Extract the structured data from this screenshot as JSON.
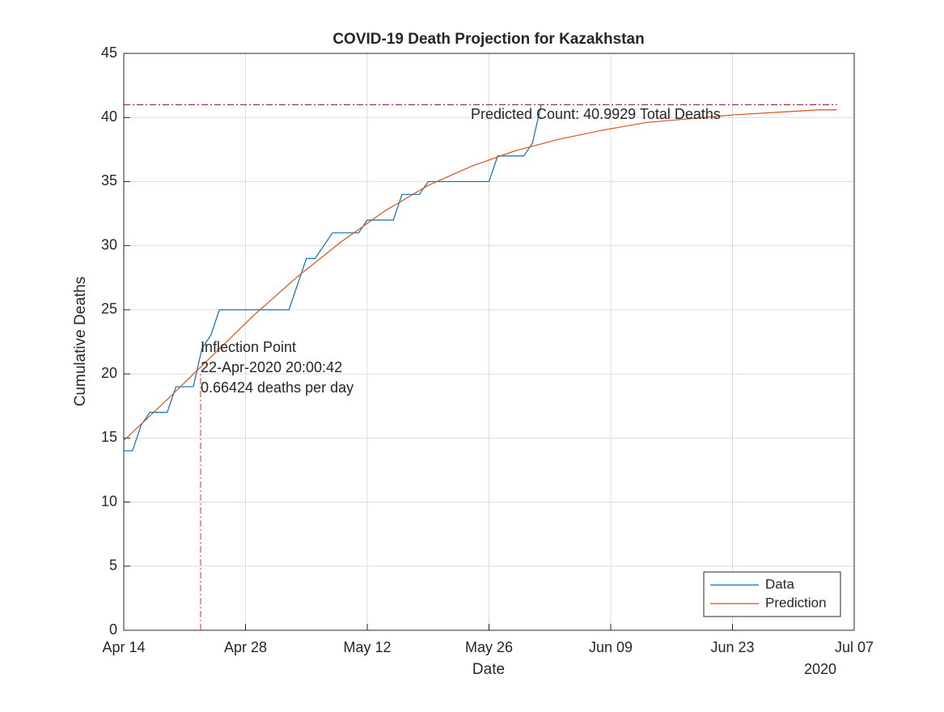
{
  "chart_data": {
    "type": "line",
    "title": "COVID-19 Death Projection for Kazakhstan",
    "xlabel": "Date",
    "xlabel_year": "2020",
    "ylabel": "Cumulative Deaths",
    "xlim": [
      "2020-04-14",
      "2020-07-07"
    ],
    "xticks": [
      {
        "value": "2020-04-14",
        "label": "Apr 14"
      },
      {
        "value": "2020-04-28",
        "label": "Apr 28"
      },
      {
        "value": "2020-05-12",
        "label": "May 12"
      },
      {
        "value": "2020-05-26",
        "label": "May 26"
      },
      {
        "value": "2020-06-09",
        "label": "Jun 09"
      },
      {
        "value": "2020-06-23",
        "label": "Jun 23"
      },
      {
        "value": "2020-07-07",
        "label": "Jul 07"
      }
    ],
    "ylim": [
      0,
      45
    ],
    "yticks": [
      0,
      5,
      10,
      15,
      20,
      25,
      30,
      35,
      40,
      45
    ],
    "grid": true,
    "legend_position": "southeast",
    "series": [
      {
        "name": "Data",
        "color": "#0072bd",
        "x": [
          "2020-04-14",
          "2020-04-15",
          "2020-04-16",
          "2020-04-17",
          "2020-04-18",
          "2020-04-19",
          "2020-04-20",
          "2020-04-21",
          "2020-04-22",
          "2020-04-23",
          "2020-04-24",
          "2020-04-25",
          "2020-04-26",
          "2020-04-27",
          "2020-04-28",
          "2020-04-29",
          "2020-04-30",
          "2020-05-01",
          "2020-05-02",
          "2020-05-03",
          "2020-05-04",
          "2020-05-05",
          "2020-05-06",
          "2020-05-07",
          "2020-05-08",
          "2020-05-09",
          "2020-05-10",
          "2020-05-11",
          "2020-05-12",
          "2020-05-13",
          "2020-05-14",
          "2020-05-15",
          "2020-05-16",
          "2020-05-17",
          "2020-05-18",
          "2020-05-19",
          "2020-05-20",
          "2020-05-21",
          "2020-05-22",
          "2020-05-23",
          "2020-05-24",
          "2020-05-25",
          "2020-05-26",
          "2020-05-27",
          "2020-05-28",
          "2020-05-29",
          "2020-05-30",
          "2020-05-31",
          "2020-06-01"
        ],
        "values": [
          14,
          14,
          16,
          17,
          17,
          17,
          19,
          19,
          19,
          22,
          23,
          25,
          25,
          25,
          25,
          25,
          25,
          25,
          25,
          25,
          27,
          29,
          29,
          30,
          31,
          31,
          31,
          31,
          32,
          32,
          32,
          32,
          34,
          34,
          34,
          35,
          35,
          35,
          35,
          35,
          35,
          35,
          35,
          37,
          37,
          37,
          37,
          38,
          41
        ]
      },
      {
        "name": "Prediction",
        "color": "#d95319",
        "x": [
          "2020-04-14",
          "2020-04-19",
          "2020-04-24",
          "2020-04-29",
          "2020-05-04",
          "2020-05-09",
          "2020-05-14",
          "2020-05-19",
          "2020-05-24",
          "2020-05-29",
          "2020-06-03",
          "2020-06-08",
          "2020-06-13",
          "2020-06-18",
          "2020-06-23",
          "2020-06-28",
          "2020-07-03",
          "2020-07-05"
        ],
        "values": [
          14.8,
          18.0,
          21.3,
          24.6,
          27.6,
          30.3,
          32.7,
          34.7,
          36.2,
          37.4,
          38.3,
          39.0,
          39.6,
          39.9,
          40.2,
          40.4,
          40.6,
          40.6
        ]
      }
    ],
    "predicted_count": 40.9929,
    "predicted_color": "#a2142f",
    "predicted_label": "Predicted Count: 40.9929 Total Deaths",
    "inflection_x": "2020-04-22T20:00:42",
    "inflection_color": "#e8302a",
    "inflection_label": [
      "Inflection Point",
      "22-Apr-2020 20:00:42",
      "0.66424 deaths per day"
    ]
  }
}
